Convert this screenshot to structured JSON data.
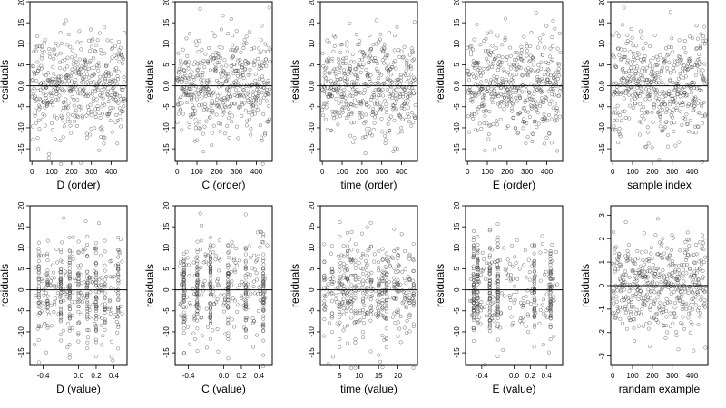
{
  "chart_data": [
    {
      "type": "scatter",
      "xlabel": "D (order)",
      "ylabel": "residuals",
      "xlim": [
        -10,
        480
      ],
      "ylim": [
        -18,
        20
      ],
      "xticks": [
        0,
        100,
        200,
        300,
        400
      ],
      "xtick_labels": [
        "0",
        "100",
        "200",
        "300",
        "400"
      ],
      "yticks": [
        -15,
        -10,
        -5,
        0,
        5,
        10,
        15,
        20
      ],
      "ytick_labels": [
        "-15",
        "-10",
        "-5",
        "0.0",
        "5",
        "10",
        "15",
        "20"
      ],
      "hline": 0,
      "n": 470,
      "sd": 6.0,
      "mode": "order"
    },
    {
      "type": "scatter",
      "xlabel": "C (order)",
      "ylabel": "residuals",
      "xlim": [
        -10,
        480
      ],
      "ylim": [
        -18,
        20
      ],
      "xticks": [
        0,
        100,
        200,
        300,
        400
      ],
      "xtick_labels": [
        "0",
        "100",
        "200",
        "300",
        "400"
      ],
      "yticks": [
        -15,
        -10,
        -5,
        0,
        5,
        10,
        15,
        20
      ],
      "ytick_labels": [
        "-15",
        "-10",
        "-5",
        "0.0",
        "5",
        "10",
        "15",
        "20"
      ],
      "hline": 0,
      "n": 470,
      "sd": 6.0,
      "mode": "order"
    },
    {
      "type": "scatter",
      "xlabel": "time (order)",
      "ylabel": "residuals",
      "xlim": [
        -10,
        480
      ],
      "ylim": [
        -18,
        20
      ],
      "xticks": [
        0,
        100,
        200,
        300,
        400
      ],
      "xtick_labels": [
        "0",
        "100",
        "200",
        "300",
        "400"
      ],
      "yticks": [
        -15,
        -10,
        -5,
        0,
        5,
        10,
        15,
        20
      ],
      "ytick_labels": [
        "-15",
        "-10",
        "-5",
        "0.0",
        "5",
        "10",
        "15",
        "20"
      ],
      "hline": 0,
      "n": 470,
      "sd": 6.0,
      "mode": "order"
    },
    {
      "type": "scatter",
      "xlabel": "E (order)",
      "ylabel": "residuals",
      "xlim": [
        -10,
        480
      ],
      "ylim": [
        -18,
        20
      ],
      "xticks": [
        0,
        100,
        200,
        300,
        400
      ],
      "xtick_labels": [
        "0",
        "100",
        "200",
        "300",
        "400"
      ],
      "yticks": [
        -15,
        -10,
        -5,
        0,
        5,
        10,
        15,
        20
      ],
      "ytick_labels": [
        "-15",
        "-10",
        "-5",
        "0.0",
        "5",
        "10",
        "15",
        "20"
      ],
      "hline": 0,
      "n": 470,
      "sd": 6.0,
      "mode": "order"
    },
    {
      "type": "scatter",
      "xlabel": "sample index",
      "ylabel": "residuals",
      "xlim": [
        -10,
        480
      ],
      "ylim": [
        -18,
        20
      ],
      "xticks": [
        0,
        100,
        200,
        300,
        400
      ],
      "xtick_labels": [
        "0",
        "100",
        "200",
        "300",
        "400"
      ],
      "yticks": [
        -15,
        -10,
        -5,
        0,
        5,
        10,
        15,
        20
      ],
      "ytick_labels": [
        "-15",
        "-10",
        "-5",
        "0.0",
        "5",
        "10",
        "15",
        "20"
      ],
      "hline": 0,
      "n": 470,
      "sd": 6.0,
      "mode": "order"
    },
    {
      "type": "scatter",
      "xlabel": "D (value)",
      "ylabel": "residuals",
      "xlim": [
        -0.55,
        0.55
      ],
      "ylim": [
        -18,
        20
      ],
      "xticks": [
        -0.4,
        0.0,
        0.2,
        0.4
      ],
      "xtick_labels": [
        "-0.4",
        "0.0",
        "0.2",
        "0.4"
      ],
      "yticks": [
        -15,
        -10,
        -5,
        0,
        5,
        10,
        15,
        20
      ],
      "ytick_labels": [
        "-15",
        "-10",
        "-5",
        "0",
        "5",
        "10",
        "15",
        "20"
      ],
      "hline": 0,
      "n": 470,
      "sd": 6.0,
      "mode": "value",
      "xrange": [
        -0.5,
        0.5
      ],
      "clusters": [
        -0.45,
        -0.35,
        -0.2,
        -0.1,
        0.0,
        0.1,
        0.2,
        0.3,
        0.45
      ]
    },
    {
      "type": "scatter",
      "xlabel": "C (value)",
      "ylabel": "residuals",
      "xlim": [
        -0.55,
        0.55
      ],
      "ylim": [
        -18,
        20
      ],
      "xticks": [
        -0.4,
        0.0,
        0.2,
        0.4
      ],
      "xtick_labels": [
        "-0.4",
        "0.0",
        "0.2",
        "0.4"
      ],
      "yticks": [
        -15,
        -10,
        -5,
        0,
        5,
        10,
        15,
        20
      ],
      "ytick_labels": [
        "-15",
        "-10",
        "-5",
        "0",
        "5",
        "10",
        "15",
        "20"
      ],
      "hline": 0,
      "n": 470,
      "sd": 6.0,
      "mode": "value",
      "xrange": [
        -0.5,
        0.5
      ],
      "clusters": [
        -0.45,
        -0.3,
        -0.15,
        0.05,
        0.25,
        0.45
      ]
    },
    {
      "type": "scatter",
      "xlabel": "time (value)",
      "ylabel": "residuals",
      "xlim": [
        0,
        25
      ],
      "ylim": [
        -18,
        20
      ],
      "xticks": [
        5,
        10,
        15,
        20
      ],
      "xtick_labels": [
        "5",
        "10",
        "15",
        "20"
      ],
      "yticks": [
        -15,
        -10,
        -5,
        0,
        5,
        10,
        15,
        20
      ],
      "ytick_labels": [
        "-15",
        "-10",
        "-5",
        "0",
        "5",
        "10",
        "15",
        "20"
      ],
      "hline": 0,
      "n": 470,
      "sd": 6.0,
      "mode": "value",
      "xrange": [
        1,
        24
      ],
      "clusters": [
        1,
        3,
        5,
        6,
        7,
        8,
        9,
        11,
        12,
        13,
        15,
        16,
        17,
        19,
        20,
        23,
        24
      ]
    },
    {
      "type": "scatter",
      "xlabel": "E (value)",
      "ylabel": "residuals",
      "xlim": [
        -0.6,
        0.6
      ],
      "ylim": [
        -18,
        20
      ],
      "xticks": [
        -0.4,
        0.0,
        0.2,
        0.4
      ],
      "xtick_labels": [
        "-0.4",
        "0.0",
        "0.2",
        "0.4"
      ],
      "yticks": [
        -15,
        -10,
        -5,
        0,
        5,
        10,
        15,
        20
      ],
      "ytick_labels": [
        "-15",
        "-10",
        "-5",
        "0",
        "5",
        "10",
        "15",
        "20"
      ],
      "hline": 0,
      "n": 470,
      "sd": 6.0,
      "mode": "value",
      "xrange": [
        -0.55,
        0.55
      ],
      "clusters": [
        -0.5,
        -0.45,
        -0.3,
        -0.2,
        0.25,
        0.45
      ]
    },
    {
      "type": "scatter",
      "xlabel": "randam example",
      "ylabel": "residuals",
      "xlim": [
        -10,
        480
      ],
      "ylim": [
        -3.4,
        3.4
      ],
      "xticks": [
        0,
        100,
        200,
        300,
        400
      ],
      "xtick_labels": [
        "0",
        "100",
        "200",
        "300",
        "400"
      ],
      "yticks": [
        -3,
        -2,
        -1,
        0,
        1,
        2,
        3
      ],
      "ytick_labels": [
        "-3",
        "-2",
        "-1",
        "0",
        "1",
        "2",
        "3"
      ],
      "hline": 0,
      "n": 470,
      "sd": 1.0,
      "mode": "order"
    }
  ]
}
